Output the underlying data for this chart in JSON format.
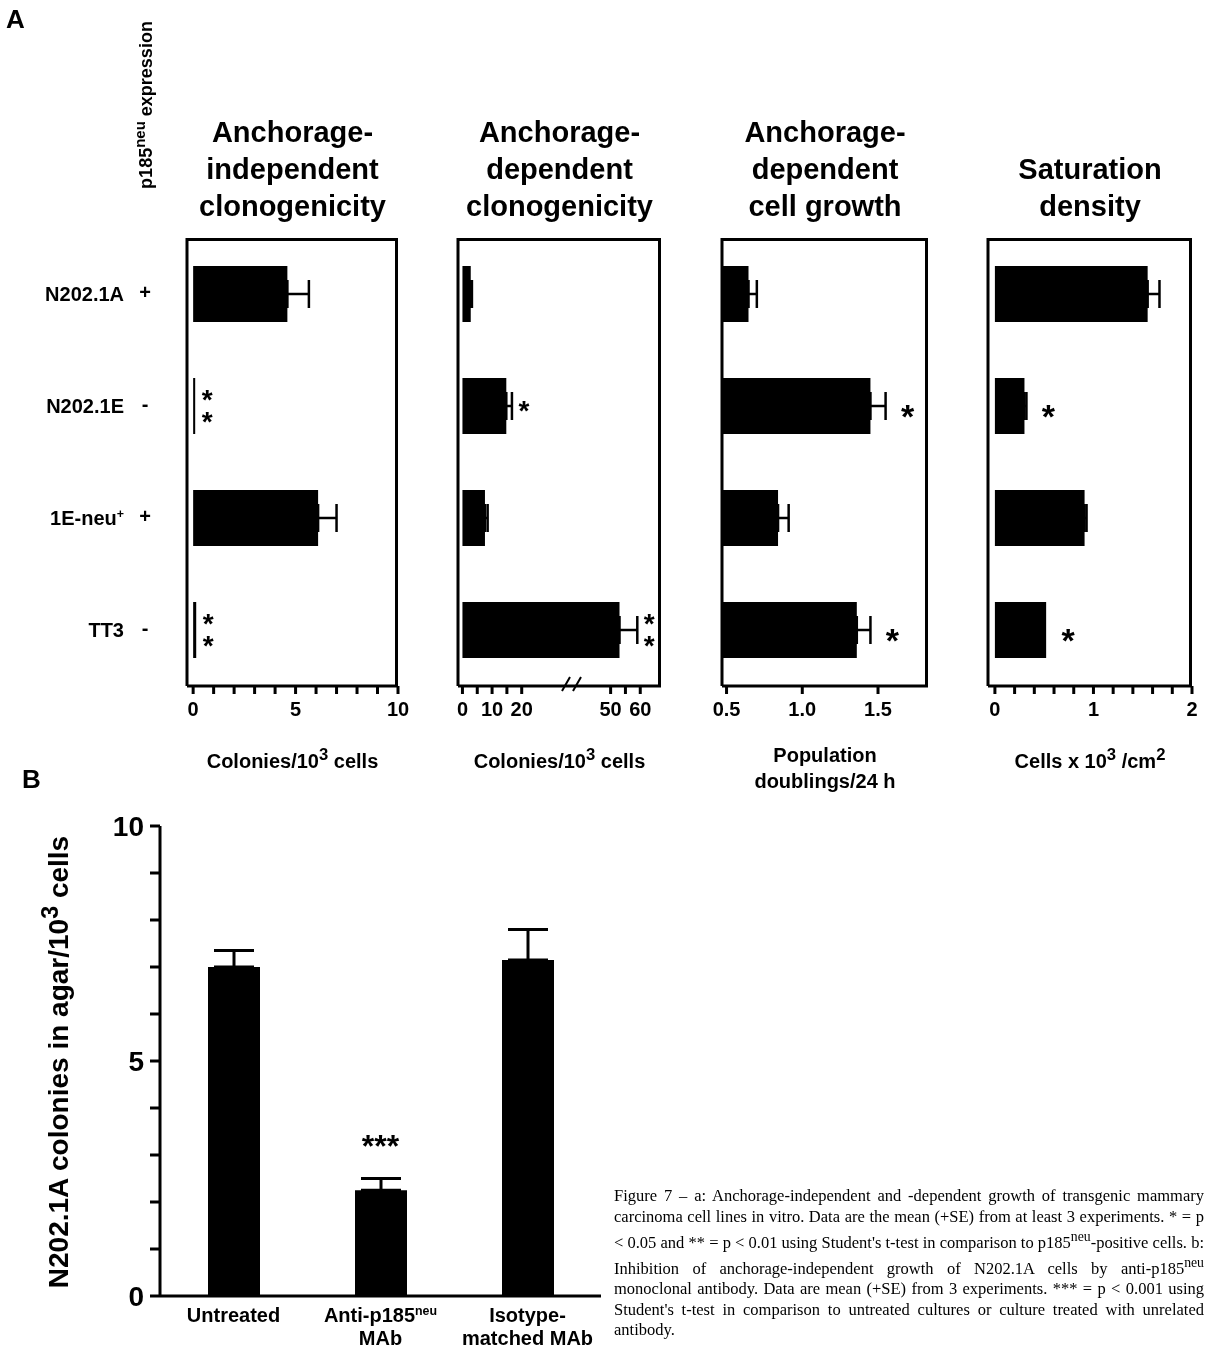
{
  "chart_data": [
    {
      "type": "bar",
      "orientation": "horizontal",
      "title": "Anchorage-independent clonogenicity",
      "xlabel": "Colonies/10$^{3}$ cells",
      "categories": [
        "N202.1A",
        "N202.1E",
        "1E-neu$^{+}$",
        "TT3"
      ],
      "values": [
        4.6,
        0.1,
        6.1,
        0.15
      ],
      "errors": [
        [
          4.6,
          5.65
        ],
        null,
        [
          6.1,
          7.0
        ],
        null
      ],
      "color": "#000000",
      "xlim": [
        -0.3,
        10
      ],
      "xticks": [
        0,
        {
          "value": 1,
          "label": null
        },
        {
          "value": 2,
          "label": null
        },
        {
          "value": 3,
          "label": null
        },
        {
          "value": 4,
          "label": null
        },
        5,
        {
          "value": 6,
          "label": null
        },
        {
          "value": 7,
          "label": null
        },
        {
          "value": 8,
          "label": null
        },
        {
          "value": 9,
          "label": null
        },
        10
      ],
      "annotations": [
        "A",
        "p185$^{neu}$ expression",
        "+",
        "-",
        "+",
        "-",
        {
          "text": "**",
          "x": 0.1,
          "y": "N202.1E"
        },
        {
          "text": "**",
          "x": 0.15,
          "y": "TT3"
        }
      ]
    },
    {
      "type": "bar",
      "orientation": "horizontal",
      "title": "Anchorage-dependent clonogenicity",
      "xlabel": "Colonies/10$^{3}$ cells",
      "categories": [
        "N202.1A",
        "N202.1E",
        "1E-neu$^{+}$",
        "TT3"
      ],
      "values": [
        2.8,
        14.8,
        7.6,
        53
      ],
      "errors": [
        [
          2.8,
          3.2
        ],
        [
          14.8,
          16.7
        ],
        [
          7.6,
          8.5
        ],
        [
          53,
          59
        ]
      ],
      "color": "#000000",
      "xlim": [
        -1.5,
        67
      ],
      "xticks": [
        0,
        {
          "value": 5,
          "label": null
        },
        10,
        {
          "value": 15,
          "label": null
        },
        20,
        50,
        {
          "value": 55,
          "label": null
        },
        60
      ],
      "tick_labels": "x",
      "annotations": [
        {
          "text": "*",
          "x": 14.8,
          "y": "N202.1E"
        },
        {
          "text": "**",
          "x": 53,
          "y": "TT3"
        }
      ]
    },
    {
      "type": "bar",
      "orientation": "horizontal",
      "title": "Anchorage-dependent cell growth",
      "xlabel": "Population doublings/24 h",
      "categories": [
        "N202.1A",
        "N202.1E",
        "1E-neu$^{+}$",
        "TT3"
      ],
      "values": [
        0.645,
        1.45,
        0.84,
        1.36
      ],
      "errors": [
        [
          0.645,
          0.7
        ],
        [
          1.45,
          1.55
        ],
        [
          0.84,
          0.91
        ],
        [
          1.36,
          1.45
        ]
      ],
      "color": "#000000",
      "xlim": [
        0.47,
        1.83
      ],
      "xticks": [
        0.5,
        {
          "value": 1,
          "label": "1.0"
        },
        1.5
      ],
      "tick_labels": "x",
      "annotations": [
        {
          "text": "*",
          "x": 1.45,
          "y": "N202.1E"
        },
        {
          "text": "*",
          "x": 1.36,
          "y": "TT3"
        }
      ]
    },
    {
      "type": "bar",
      "orientation": "horizontal",
      "title": "Saturation density",
      "xlabel": "Cells x 10$^{3}$ /cm$^{2}$",
      "categories": [
        "N202.1A",
        "N202.1E",
        "1E-neu$^{+}$",
        "TT3"
      ],
      "values": [
        1.55,
        0.3,
        0.91,
        0.52
      ],
      "errors": [
        [
          1.55,
          1.67
        ],
        [
          0.3,
          0.32
        ],
        [
          0.91,
          0.93
        ],
        null
      ],
      "color": "#000000",
      "xlim": [
        -0.07,
        2
      ],
      "xticks": [
        0,
        {
          "value": 0.2,
          "label": null
        },
        {
          "value": 0.4,
          "label": null
        },
        {
          "value": 0.6,
          "label": null
        },
        {
          "value": 0.8,
          "label": null
        },
        1,
        {
          "value": 1.2,
          "label": null
        },
        {
          "value": 1.4,
          "label": null
        },
        {
          "value": 1.6,
          "label": null
        },
        {
          "value": 1.8,
          "label": null
        },
        2
      ],
      "tick_labels": "x",
      "annotations": [
        {
          "text": "*",
          "x": 0.3,
          "y": "N202.1E"
        },
        {
          "text": "*",
          "x": 0.52,
          "y": "TT3"
        }
      ]
    },
    {
      "type": "bar",
      "ylabel": "N202.1A colonies in agar/10$^{3}$ cells",
      "categories": [
        "Untreated",
        "Anti-p185$^{neu}$ MAb",
        "Isotype-matched MAb"
      ],
      "values": [
        7.0,
        2.25,
        7.15
      ],
      "errors": [
        [
          7.0,
          7.35
        ],
        [
          2.25,
          2.5
        ],
        [
          7.15,
          7.8
        ]
      ],
      "color": "#000000",
      "ylim": [
        0,
        10
      ],
      "yticks": [
        0,
        {
          "value": 1,
          "label": null
        },
        {
          "value": 2,
          "label": null
        },
        {
          "value": 3,
          "label": null
        },
        {
          "value": 4,
          "label": null
        },
        5,
        {
          "value": 6,
          "label": null
        },
        {
          "value": 7,
          "label": null
        },
        {
          "value": 8,
          "label": null
        },
        {
          "value": 9,
          "label": null
        },
        10
      ],
      "annotations": [
        "B",
        {
          "text": "***",
          "x": "Anti-p185$^{neu}$ MAb",
          "y": 2.25
        },
        "Figure 7 – a: Anchorage-independent and -dependent growth of transgenic mammary carcinoma cell lines in vitro. Data are the mean (+SE) from at least 3 experiments. * = p < 0.05 and ** = p < 0.01 using Student's t-test in comparison to p185$^{neu}$-positive cells. b: Inhibition of anchorage-independent growth of N202.1A cells by anti-p185$^{neu}$ monoclonal antibody. Data are mean (+SE) from 3 experiments. *** = p < 0.001 using Student's t-test in comparison to untreated cultures or culture treated with unrelated antibody."
      ]
    }
  ]
}
